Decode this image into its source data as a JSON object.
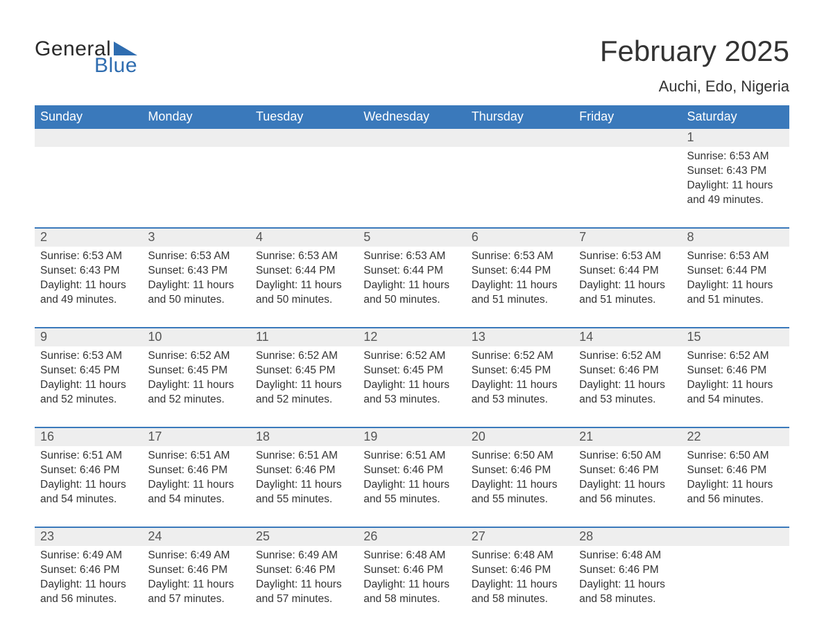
{
  "brand": {
    "part1": "General",
    "part2": "Blue",
    "triangle_color": "#2f6db0",
    "text_color_dark": "#2a2a2a",
    "text_color_blue": "#2f6db0"
  },
  "title": {
    "month_year": "February 2025",
    "location": "Auchi, Edo, Nigeria"
  },
  "colors": {
    "header_bg": "#3a79bb",
    "header_text": "#ffffff",
    "row_border": "#3a79bb",
    "daynum_bg": "#eeeeee",
    "body_text": "#333333",
    "page_bg": "#ffffff"
  },
  "labels": {
    "sunrise": "Sunrise:",
    "sunset": "Sunset:",
    "daylight": "Daylight:"
  },
  "day_headers": [
    "Sunday",
    "Monday",
    "Tuesday",
    "Wednesday",
    "Thursday",
    "Friday",
    "Saturday"
  ],
  "weeks": [
    [
      null,
      null,
      null,
      null,
      null,
      null,
      {
        "n": "1",
        "sunrise": "6:53 AM",
        "sunset": "6:43 PM",
        "daylight": "11 hours and 49 minutes."
      }
    ],
    [
      {
        "n": "2",
        "sunrise": "6:53 AM",
        "sunset": "6:43 PM",
        "daylight": "11 hours and 49 minutes."
      },
      {
        "n": "3",
        "sunrise": "6:53 AM",
        "sunset": "6:43 PM",
        "daylight": "11 hours and 50 minutes."
      },
      {
        "n": "4",
        "sunrise": "6:53 AM",
        "sunset": "6:44 PM",
        "daylight": "11 hours and 50 minutes."
      },
      {
        "n": "5",
        "sunrise": "6:53 AM",
        "sunset": "6:44 PM",
        "daylight": "11 hours and 50 minutes."
      },
      {
        "n": "6",
        "sunrise": "6:53 AM",
        "sunset": "6:44 PM",
        "daylight": "11 hours and 51 minutes."
      },
      {
        "n": "7",
        "sunrise": "6:53 AM",
        "sunset": "6:44 PM",
        "daylight": "11 hours and 51 minutes."
      },
      {
        "n": "8",
        "sunrise": "6:53 AM",
        "sunset": "6:44 PM",
        "daylight": "11 hours and 51 minutes."
      }
    ],
    [
      {
        "n": "9",
        "sunrise": "6:53 AM",
        "sunset": "6:45 PM",
        "daylight": "11 hours and 52 minutes."
      },
      {
        "n": "10",
        "sunrise": "6:52 AM",
        "sunset": "6:45 PM",
        "daylight": "11 hours and 52 minutes."
      },
      {
        "n": "11",
        "sunrise": "6:52 AM",
        "sunset": "6:45 PM",
        "daylight": "11 hours and 52 minutes."
      },
      {
        "n": "12",
        "sunrise": "6:52 AM",
        "sunset": "6:45 PM",
        "daylight": "11 hours and 53 minutes."
      },
      {
        "n": "13",
        "sunrise": "6:52 AM",
        "sunset": "6:45 PM",
        "daylight": "11 hours and 53 minutes."
      },
      {
        "n": "14",
        "sunrise": "6:52 AM",
        "sunset": "6:46 PM",
        "daylight": "11 hours and 53 minutes."
      },
      {
        "n": "15",
        "sunrise": "6:52 AM",
        "sunset": "6:46 PM",
        "daylight": "11 hours and 54 minutes."
      }
    ],
    [
      {
        "n": "16",
        "sunrise": "6:51 AM",
        "sunset": "6:46 PM",
        "daylight": "11 hours and 54 minutes."
      },
      {
        "n": "17",
        "sunrise": "6:51 AM",
        "sunset": "6:46 PM",
        "daylight": "11 hours and 54 minutes."
      },
      {
        "n": "18",
        "sunrise": "6:51 AM",
        "sunset": "6:46 PM",
        "daylight": "11 hours and 55 minutes."
      },
      {
        "n": "19",
        "sunrise": "6:51 AM",
        "sunset": "6:46 PM",
        "daylight": "11 hours and 55 minutes."
      },
      {
        "n": "20",
        "sunrise": "6:50 AM",
        "sunset": "6:46 PM",
        "daylight": "11 hours and 55 minutes."
      },
      {
        "n": "21",
        "sunrise": "6:50 AM",
        "sunset": "6:46 PM",
        "daylight": "11 hours and 56 minutes."
      },
      {
        "n": "22",
        "sunrise": "6:50 AM",
        "sunset": "6:46 PM",
        "daylight": "11 hours and 56 minutes."
      }
    ],
    [
      {
        "n": "23",
        "sunrise": "6:49 AM",
        "sunset": "6:46 PM",
        "daylight": "11 hours and 56 minutes."
      },
      {
        "n": "24",
        "sunrise": "6:49 AM",
        "sunset": "6:46 PM",
        "daylight": "11 hours and 57 minutes."
      },
      {
        "n": "25",
        "sunrise": "6:49 AM",
        "sunset": "6:46 PM",
        "daylight": "11 hours and 57 minutes."
      },
      {
        "n": "26",
        "sunrise": "6:48 AM",
        "sunset": "6:46 PM",
        "daylight": "11 hours and 58 minutes."
      },
      {
        "n": "27",
        "sunrise": "6:48 AM",
        "sunset": "6:46 PM",
        "daylight": "11 hours and 58 minutes."
      },
      {
        "n": "28",
        "sunrise": "6:48 AM",
        "sunset": "6:46 PM",
        "daylight": "11 hours and 58 minutes."
      },
      null
    ]
  ]
}
